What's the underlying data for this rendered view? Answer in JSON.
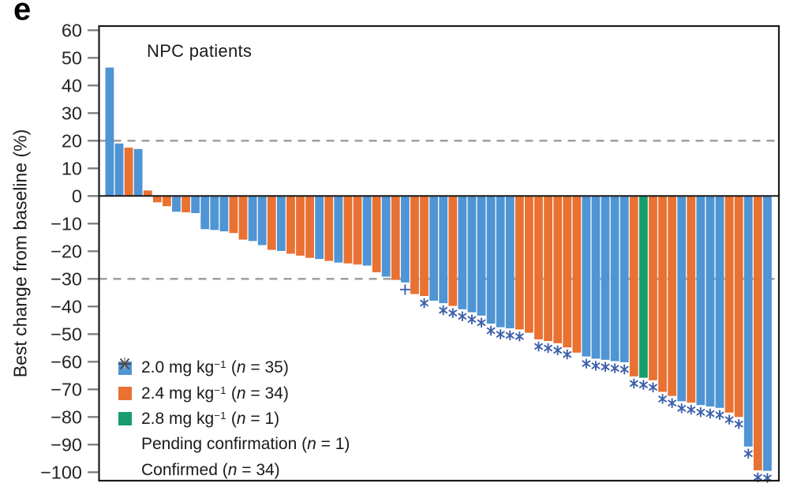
{
  "panel_label": "e",
  "chart_data": {
    "type": "bar",
    "title": "NPC patients",
    "ylabel": "Best change from baseline (%)",
    "xlabel": "",
    "ylim": [
      -103,
      61.5
    ],
    "yticks": [
      60,
      50,
      40,
      30,
      20,
      10,
      0,
      -10,
      -20,
      -30,
      -40,
      -50,
      -60,
      -70,
      -80,
      -90,
      -100
    ],
    "ytick_labels": [
      "60",
      "50",
      "40",
      "30",
      "20",
      "10",
      "0",
      "−10",
      "−20",
      "−30",
      "−40",
      "−50",
      "−60",
      "−70",
      "−80",
      "−90",
      "−100"
    ],
    "reference_lines": [
      20,
      -30
    ],
    "grid": false,
    "legend_position": "lower-left",
    "categories_note": "each bar = one NPC patient, sorted descending by best tumor change",
    "group_colors": {
      "2.0": "#4f94d4",
      "2.4": "#e97132",
      "2.8": "#169c6e"
    },
    "marker_color": "#3d5fa9",
    "patients": [
      {
        "v": 46.5,
        "g": "2.0",
        "m": null
      },
      {
        "v": 19.0,
        "g": "2.0",
        "m": null
      },
      {
        "v": 17.5,
        "g": "2.4",
        "m": null
      },
      {
        "v": 17.0,
        "g": "2.0",
        "m": null
      },
      {
        "v": 2.0,
        "g": "2.4",
        "m": null
      },
      {
        "v": -2.3,
        "g": "2.4",
        "m": null
      },
      {
        "v": -3.7,
        "g": "2.4",
        "m": null
      },
      {
        "v": -5.7,
        "g": "2.0",
        "m": null
      },
      {
        "v": -5.9,
        "g": "2.4",
        "m": null
      },
      {
        "v": -6.2,
        "g": "2.0",
        "m": null
      },
      {
        "v": -12.0,
        "g": "2.0",
        "m": null
      },
      {
        "v": -12.3,
        "g": "2.0",
        "m": null
      },
      {
        "v": -12.8,
        "g": "2.0",
        "m": null
      },
      {
        "v": -13.4,
        "g": "2.4",
        "m": null
      },
      {
        "v": -15.8,
        "g": "2.4",
        "m": null
      },
      {
        "v": -16.3,
        "g": "2.0",
        "m": null
      },
      {
        "v": -17.8,
        "g": "2.0",
        "m": null
      },
      {
        "v": -19.5,
        "g": "2.4",
        "m": null
      },
      {
        "v": -19.9,
        "g": "2.0",
        "m": null
      },
      {
        "v": -20.9,
        "g": "2.4",
        "m": null
      },
      {
        "v": -21.6,
        "g": "2.4",
        "m": null
      },
      {
        "v": -22.4,
        "g": "2.4",
        "m": null
      },
      {
        "v": -22.8,
        "g": "2.0",
        "m": null
      },
      {
        "v": -23.5,
        "g": "2.4",
        "m": null
      },
      {
        "v": -24.1,
        "g": "2.0",
        "m": null
      },
      {
        "v": -24.4,
        "g": "2.4",
        "m": null
      },
      {
        "v": -24.8,
        "g": "2.4",
        "m": null
      },
      {
        "v": -25.2,
        "g": "2.0",
        "m": null
      },
      {
        "v": -27.6,
        "g": "2.4",
        "m": null
      },
      {
        "v": -29.2,
        "g": "2.0",
        "m": null
      },
      {
        "v": -30.4,
        "g": "2.4",
        "m": null
      },
      {
        "v": -31.3,
        "g": "2.0",
        "m": "plus"
      },
      {
        "v": -35.5,
        "g": "2.4",
        "m": null
      },
      {
        "v": -36.2,
        "g": "2.4",
        "m": "star"
      },
      {
        "v": -37.9,
        "g": "2.0",
        "m": null
      },
      {
        "v": -38.8,
        "g": "2.0",
        "m": "star"
      },
      {
        "v": -39.8,
        "g": "2.4",
        "m": "star"
      },
      {
        "v": -41.0,
        "g": "2.0",
        "m": "star"
      },
      {
        "v": -42.1,
        "g": "2.0",
        "m": "star"
      },
      {
        "v": -43.3,
        "g": "2.0",
        "m": "star"
      },
      {
        "v": -46.2,
        "g": "2.0",
        "m": "star"
      },
      {
        "v": -47.5,
        "g": "2.0",
        "m": "star"
      },
      {
        "v": -47.9,
        "g": "2.0",
        "m": "star"
      },
      {
        "v": -48.3,
        "g": "2.4",
        "m": "star"
      },
      {
        "v": -49.5,
        "g": "2.4",
        "m": null
      },
      {
        "v": -51.9,
        "g": "2.4",
        "m": "star"
      },
      {
        "v": -52.5,
        "g": "2.4",
        "m": "star"
      },
      {
        "v": -53.3,
        "g": "2.4",
        "m": "star"
      },
      {
        "v": -54.8,
        "g": "2.4",
        "m": "star"
      },
      {
        "v": -56.7,
        "g": "2.4",
        "m": null
      },
      {
        "v": -58.1,
        "g": "2.0",
        "m": "star"
      },
      {
        "v": -58.9,
        "g": "2.0",
        "m": "star"
      },
      {
        "v": -59.3,
        "g": "2.0",
        "m": "star"
      },
      {
        "v": -59.8,
        "g": "2.0",
        "m": "star"
      },
      {
        "v": -60.2,
        "g": "2.0",
        "m": "star"
      },
      {
        "v": -65.3,
        "g": "2.4",
        "m": "star"
      },
      {
        "v": -65.8,
        "g": "2.8",
        "m": "star"
      },
      {
        "v": -66.7,
        "g": "2.4",
        "m": "star"
      },
      {
        "v": -70.9,
        "g": "2.4",
        "m": "star"
      },
      {
        "v": -72.4,
        "g": "2.4",
        "m": "star"
      },
      {
        "v": -74.3,
        "g": "2.0",
        "m": "star"
      },
      {
        "v": -74.8,
        "g": "2.4",
        "m": "star"
      },
      {
        "v": -75.7,
        "g": "2.0",
        "m": "star"
      },
      {
        "v": -76.2,
        "g": "2.0",
        "m": "star"
      },
      {
        "v": -76.7,
        "g": "2.0",
        "m": "star"
      },
      {
        "v": -78.4,
        "g": "2.4",
        "m": "star"
      },
      {
        "v": -80.0,
        "g": "2.4",
        "m": "star"
      },
      {
        "v": -90.7,
        "g": "2.0",
        "m": "star"
      },
      {
        "v": -99.3,
        "g": "2.4",
        "m": "star"
      },
      {
        "v": -99.5,
        "g": "2.0",
        "m": "star"
      }
    ]
  },
  "legend": {
    "items": [
      {
        "glyph": "swatch",
        "color": "#4f94d4",
        "prefix": "2.0 mg kg",
        "sup": "−1",
        "paren": " (",
        "nsym": "n",
        "rest": " = 35)"
      },
      {
        "glyph": "swatch",
        "color": "#e97132",
        "prefix": "2.4 mg kg",
        "sup": "−1",
        "paren": " (",
        "nsym": "n",
        "rest": " = 34)"
      },
      {
        "glyph": "swatch",
        "color": "#169c6e",
        "prefix": "2.8 mg kg",
        "sup": "−1",
        "paren": " (",
        "nsym": "n",
        "rest": " = 1)"
      },
      {
        "glyph": "plus",
        "color": "#9e9e9e",
        "prefix": "Pending confirmation",
        "sup": "",
        "paren": " (",
        "nsym": "n",
        "rest": " = 1)"
      },
      {
        "glyph": "star",
        "color": "#4a4a4a",
        "prefix": "Confirmed",
        "sup": "",
        "paren": " (",
        "nsym": "n",
        "rest": " = 34)"
      }
    ]
  },
  "style": {
    "axis_color": "#1a1a1a",
    "tick_color": "#7d7d7d",
    "tick_label_color": "#262626",
    "dashed_line_color": "#9a9a9a"
  }
}
